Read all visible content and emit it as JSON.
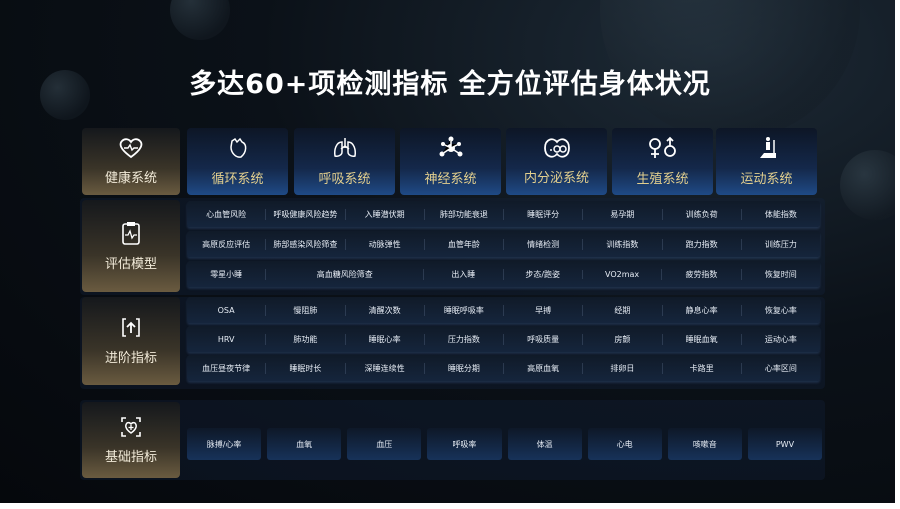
{
  "title": "多达60+项检测指标 全方位评估身体状况",
  "colors": {
    "category_text": "#e2cf8e",
    "label_card": "#6a5b40",
    "card_blue": "#1f4a86"
  },
  "header": {
    "label": "健康系统",
    "label_icon": "heart-pulse-icon",
    "categories": [
      {
        "label": "循环系统",
        "icon": "heart-organ-icon"
      },
      {
        "label": "呼吸系统",
        "icon": "lungs-icon"
      },
      {
        "label": "神经系统",
        "icon": "neuron-icon"
      },
      {
        "label": "内分泌系统",
        "icon": "gland-icon"
      },
      {
        "label": "生殖系统",
        "icon": "gender-icon"
      },
      {
        "label": "运动系统",
        "icon": "treadmill-icon"
      }
    ]
  },
  "evaluation": {
    "label": "评估模型",
    "icon": "clipboard-pulse-icon",
    "rows": [
      [
        "心血管风险",
        "呼吸健康风险趋势",
        "入睡潜伏期",
        "肺部功能衰退",
        "睡眠评分",
        "易孕期",
        "训练负荷",
        "体能指数"
      ],
      [
        "高原反应评估",
        "肺部感染风险筛查",
        "动脉弹性",
        "血管年龄",
        "情绪检测",
        "训练指数",
        "跑力指数",
        "训练压力"
      ],
      [
        "零星小睡",
        "高血糖风险筛查",
        "出入睡",
        "步态/跑姿",
        "VO2max",
        "疲劳指数",
        "恢复时间"
      ]
    ]
  },
  "advanced": {
    "label": "进阶指标",
    "icon": "upload-box-icon",
    "rows": [
      [
        "OSA",
        "慢阻肺",
        "清醒次数",
        "睡眠呼吸率",
        "早搏",
        "经期",
        "静息心率",
        "恢复心率"
      ],
      [
        "HRV",
        "肺功能",
        "睡眠心率",
        "压力指数",
        "呼吸质量",
        "房颤",
        "睡眠血氧",
        "运动心率"
      ],
      [
        "血压昼夜节律",
        "睡眠时长",
        "深睡连续性",
        "睡眠分期",
        "高原血氧",
        "排卵日",
        "卡路里",
        "心率区间"
      ]
    ]
  },
  "basic": {
    "label": "基础指标",
    "icon": "heart-scan-icon",
    "items": [
      "脉搏/心率",
      "血氧",
      "血压",
      "呼吸率",
      "体温",
      "心电",
      "咳嗽音",
      "PWV"
    ]
  }
}
